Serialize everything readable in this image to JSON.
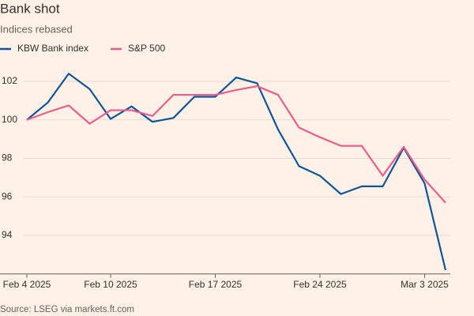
{
  "chart_data": {
    "type": "line",
    "title": "Bank shot",
    "subtitle": "Indices rebased",
    "source": "Source: LSEG via markets.ft.com",
    "categories": [
      "Feb 4 2025",
      null,
      null,
      null,
      "Feb 10 2025",
      null,
      null,
      null,
      null,
      "Feb 17 2025",
      null,
      null,
      null,
      null,
      "Feb 24 2025",
      null,
      null,
      null,
      null,
      "Mar 3 2025",
      null
    ],
    "series": [
      {
        "name": "KBW Bank index",
        "color": "#0f5499",
        "values": [
          100,
          100.9,
          102.4,
          101.6,
          100.05,
          100.7,
          99.9,
          100.1,
          101.2,
          101.2,
          102.2,
          101.9,
          99.5,
          97.6,
          97.1,
          96.15,
          96.55,
          96.55,
          98.55,
          96.7,
          92.2
        ]
      },
      {
        "name": "S&P 500",
        "color": "#e95d8c",
        "values": [
          100,
          100.4,
          100.75,
          99.8,
          100.5,
          100.5,
          100.2,
          101.3,
          101.3,
          101.3,
          101.55,
          101.75,
          101.3,
          99.6,
          99.1,
          98.65,
          98.65,
          97.1,
          98.6,
          96.9,
          95.7
        ]
      }
    ],
    "ylim": [
      92,
      103
    ],
    "yticks": [
      94,
      96,
      98,
      100,
      102
    ],
    "grid": true,
    "legend": "top-left"
  }
}
